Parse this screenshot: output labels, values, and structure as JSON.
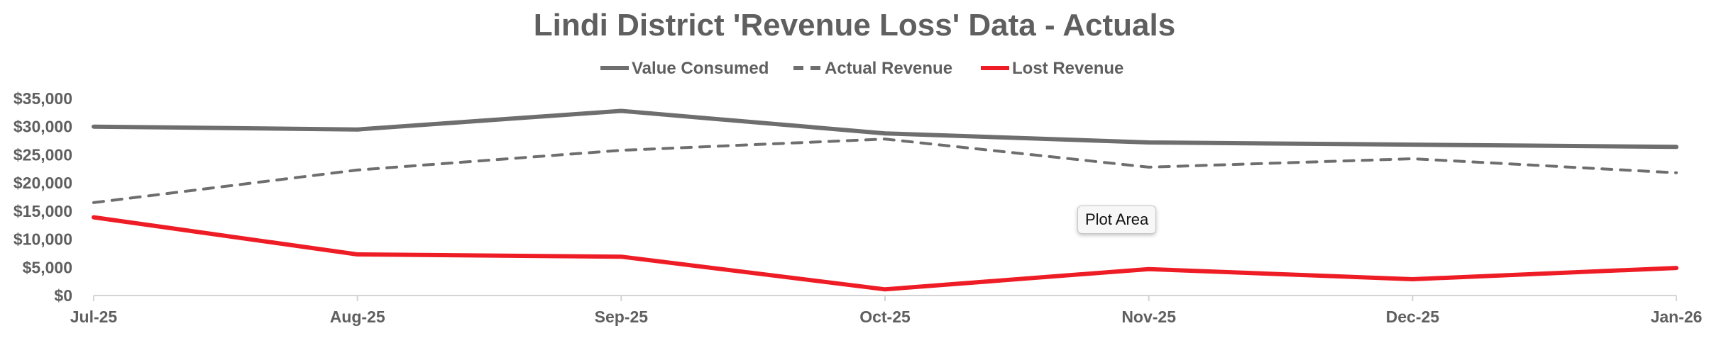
{
  "chart_data": {
    "type": "line",
    "title": "Lindi District 'Revenue Loss' Data - Actuals",
    "xlabel": "",
    "ylabel": "",
    "categories": [
      "Jul-25",
      "Aug-25",
      "Sep-25",
      "Oct-25",
      "Nov-25",
      "Dec-25",
      "Jan-26"
    ],
    "ylim": [
      0,
      35000
    ],
    "y_ticks": [
      0,
      5000,
      10000,
      15000,
      20000,
      25000,
      30000,
      35000
    ],
    "y_tick_labels": [
      "$0",
      "$5,000",
      "$10,000",
      "$15,000",
      "$20,000",
      "$25,000",
      "$30,000",
      "$35,000"
    ],
    "grid": false,
    "legend_position": "top",
    "series": [
      {
        "name": "Value Consumed",
        "values": [
          30000,
          29500,
          32800,
          28800,
          27200,
          26800,
          26400
        ],
        "color": "#6e6e6e",
        "line_style": "solid"
      },
      {
        "name": "Actual Revenue",
        "values": [
          16500,
          22300,
          25800,
          27800,
          22800,
          24300,
          21800
        ],
        "color": "#6e6e6e",
        "line_style": "dashed"
      },
      {
        "name": "Lost Revenue",
        "values": [
          13900,
          7300,
          6900,
          1100,
          4700,
          2900,
          4900
        ],
        "color": "#ee1c25",
        "line_style": "solid"
      }
    ]
  },
  "tooltip": {
    "label": "Plot Area"
  }
}
